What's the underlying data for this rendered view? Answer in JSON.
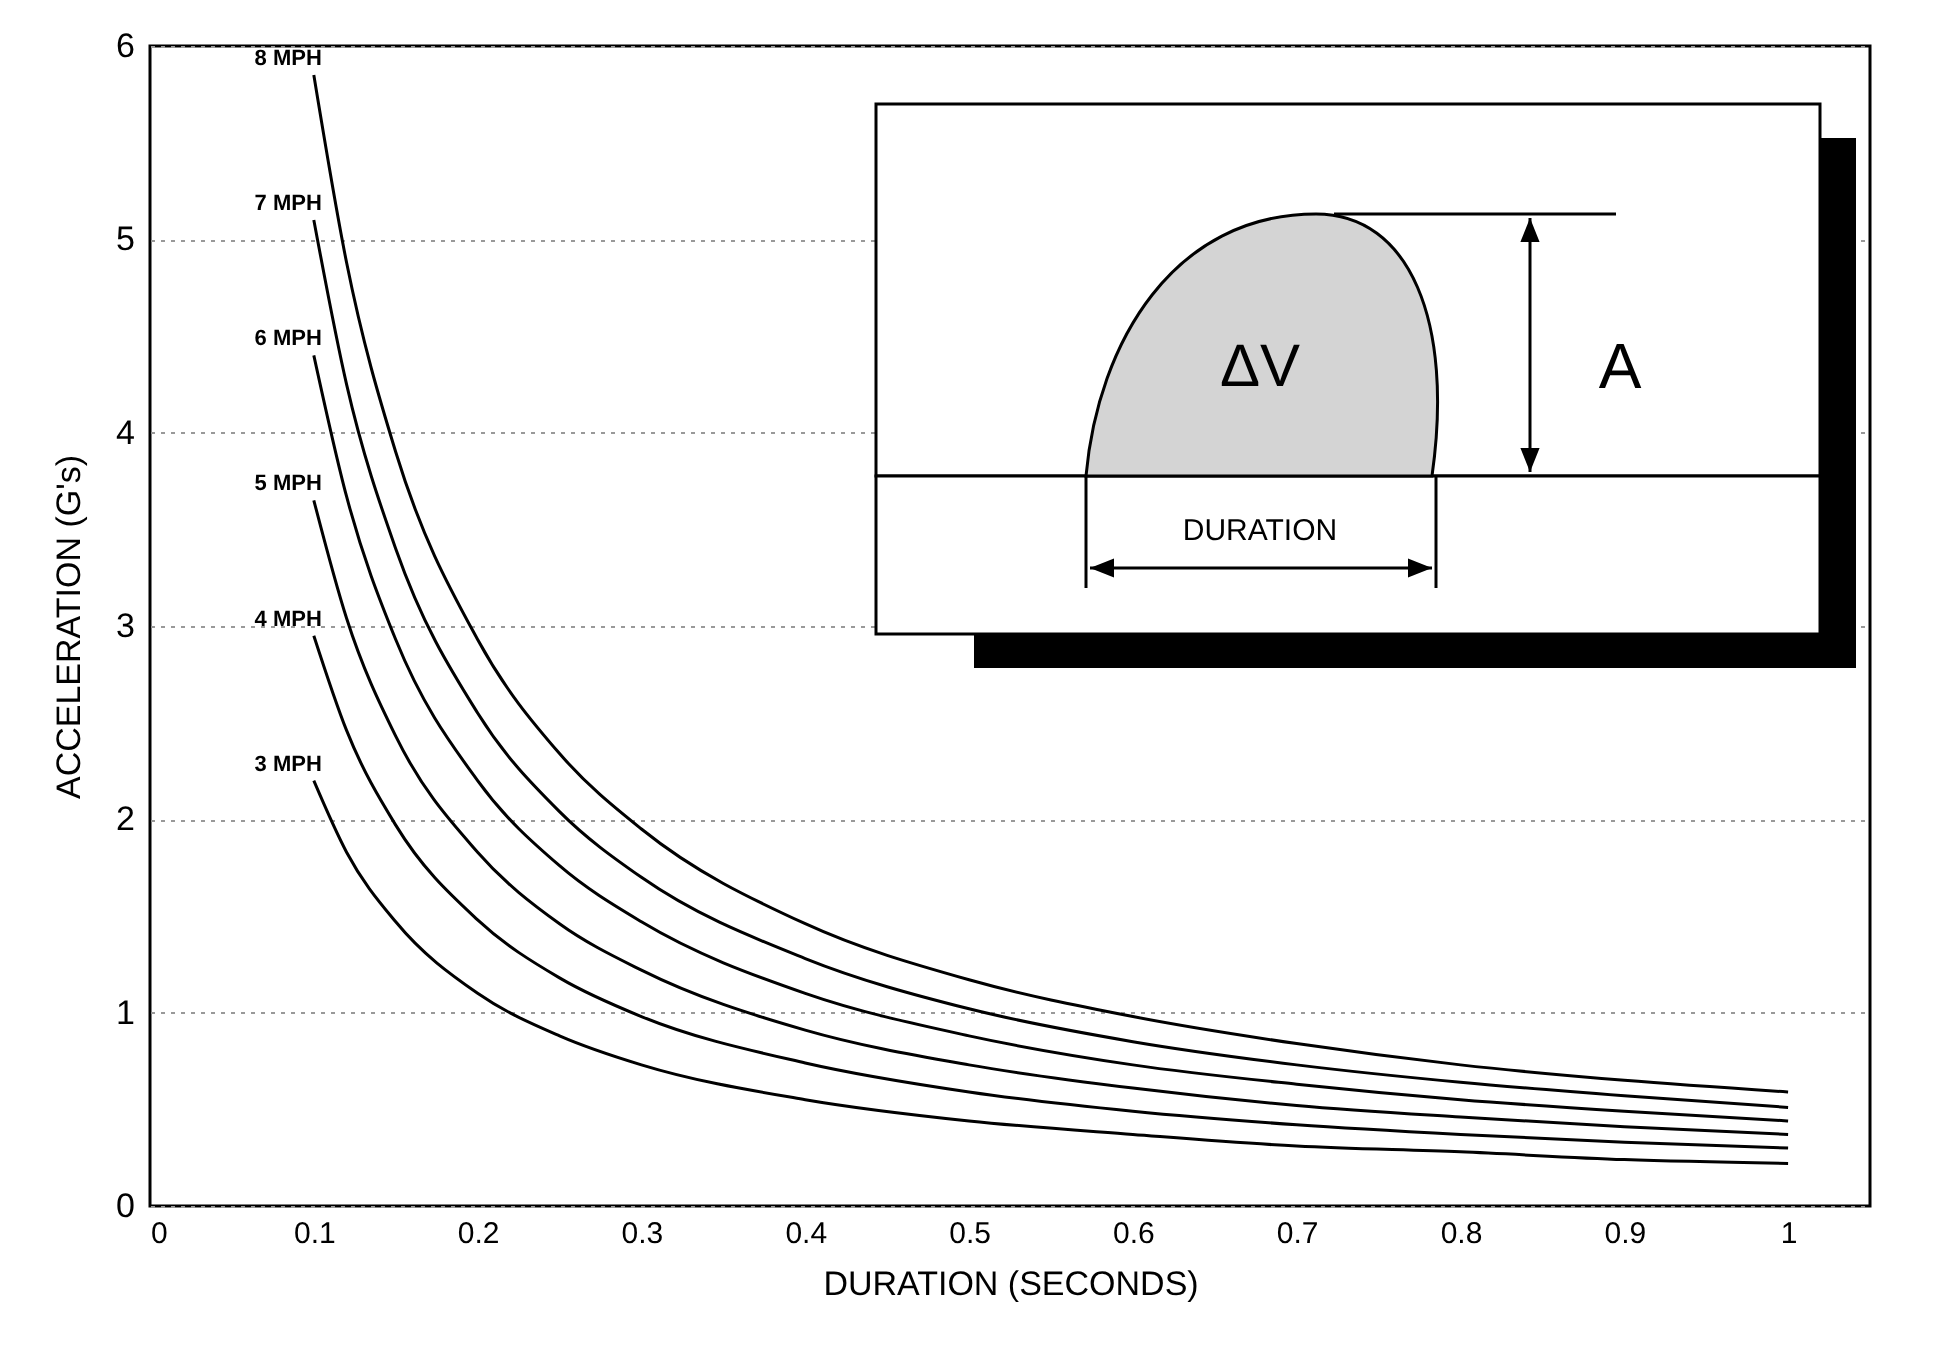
{
  "chart_data": {
    "type": "line",
    "xlabel": "DURATION (SECONDS)",
    "ylabel": "ACCELERATION (G's)",
    "x": [
      0.1,
      0.12,
      0.15,
      0.2,
      0.25,
      0.3,
      0.4,
      0.5,
      0.6,
      0.7,
      0.8,
      0.9,
      1.0
    ],
    "series": [
      {
        "name": "3 MPH",
        "color": "#000000",
        "values": [
          2.2,
          1.83,
          1.47,
          1.1,
          0.88,
          0.73,
          0.55,
          0.44,
          0.37,
          0.31,
          0.28,
          0.24,
          0.22
        ]
      },
      {
        "name": "4 MPH",
        "color": "#000000",
        "values": [
          2.95,
          2.46,
          1.97,
          1.48,
          1.18,
          0.98,
          0.74,
          0.59,
          0.49,
          0.42,
          0.37,
          0.33,
          0.3
        ]
      },
      {
        "name": "5 MPH",
        "color": "#000000",
        "values": [
          3.65,
          3.04,
          2.43,
          1.83,
          1.46,
          1.22,
          0.91,
          0.73,
          0.61,
          0.52,
          0.46,
          0.41,
          0.37
        ]
      },
      {
        "name": "6 MPH",
        "color": "#000000",
        "values": [
          4.4,
          3.67,
          2.93,
          2.2,
          1.76,
          1.47,
          1.1,
          0.88,
          0.73,
          0.63,
          0.55,
          0.49,
          0.44
        ]
      },
      {
        "name": "7 MPH",
        "color": "#000000",
        "values": [
          5.1,
          4.25,
          3.4,
          2.55,
          2.04,
          1.7,
          1.28,
          1.02,
          0.85,
          0.73,
          0.64,
          0.57,
          0.51
        ]
      },
      {
        "name": "8 MPH",
        "color": "#000000",
        "values": [
          5.85,
          4.88,
          3.9,
          2.93,
          2.34,
          1.95,
          1.46,
          1.17,
          0.98,
          0.84,
          0.73,
          0.65,
          0.59
        ]
      }
    ],
    "xlim": [
      0,
      1.05
    ],
    "ylim": [
      0,
      6
    ],
    "xticks": [
      0,
      0.1,
      0.2,
      0.3,
      0.4,
      0.5,
      0.6,
      0.7,
      0.8,
      0.9,
      1
    ],
    "yticks": [
      0,
      1,
      2,
      3,
      4,
      5,
      6
    ],
    "grid": "y",
    "annotations": [
      "ΔV",
      "A",
      "DURATION"
    ]
  }
}
